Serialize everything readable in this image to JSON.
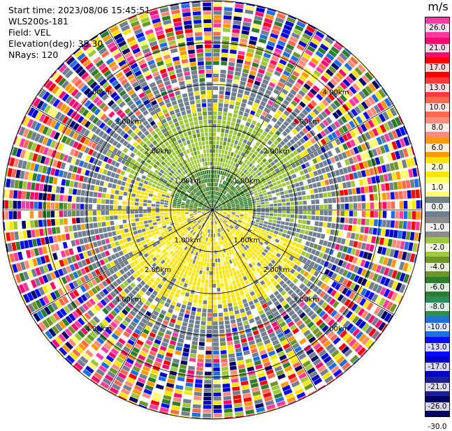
{
  "header": {
    "start_time": "Start time: 2023/08/06 15:45:51",
    "instrument": "WLS200s-181",
    "field": "Field: VEL",
    "elevation": "Elevation(deg): 35.30",
    "nrays": "NRays: 120"
  },
  "colorbar": {
    "unit": "m/s",
    "ticks": [
      "26.0",
      "21.0",
      "17.0",
      "13.0",
      "10.0",
      "8.0",
      "6.0",
      "2.0",
      "1.0",
      "0.0",
      "-1.0",
      "-2.0",
      "-4.0",
      "-6.0",
      "-8.0",
      "-10.0",
      "-13.0",
      "-17.0",
      "-21.0",
      "-26.0",
      "-30.0"
    ],
    "colors": [
      "#ff3aa0",
      "#ff0a6e",
      "#ff0000",
      "#ff3b3b",
      "#ff6a50",
      "#ff8c7a",
      "#ff9a00",
      "#ffe600",
      "#ffff6e",
      "#708090",
      "#8c8c8c",
      "#a0c83c",
      "#6e9628",
      "#2d7d2d",
      "#2d8c5a",
      "#1e6ee6",
      "#0a0aff",
      "#0000c8",
      "#1e1e96",
      "#000064"
    ]
  },
  "range_labels": [
    "1.00km",
    "2.00km",
    "3.00km",
    "4.00km"
  ]
}
